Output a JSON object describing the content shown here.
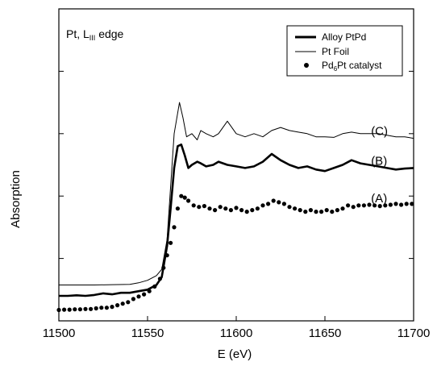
{
  "chart_data": {
    "type": "line",
    "panel_label": "Pt, L",
    "panel_label_sub": "III",
    "panel_label_suffix": " edge",
    "xlabel": "E (eV)",
    "ylabel": "Absorption",
    "xlim": [
      11500,
      11700
    ],
    "ylim": [
      0,
      10
    ],
    "x_ticks": [
      11500,
      11550,
      11600,
      11650,
      11700
    ],
    "y_ticks_drawn": true,
    "y_tick_labels_shown": false,
    "grid": false,
    "legend_position": "top-right",
    "legend": [
      {
        "key": "alloy",
        "label": "Alloy PtPd",
        "style": "thick-line"
      },
      {
        "key": "foil",
        "label": "Pt Foil",
        "style": "thin-line"
      },
      {
        "key": "catalyst",
        "label_main": "Pd",
        "label_sub": "6",
        "label_rest": "Pt catalyst",
        "style": "dots"
      }
    ],
    "annotations": [
      {
        "text": "(C)",
        "x": 11676,
        "y": 5.95
      },
      {
        "text": "(B)",
        "x": 11676,
        "y": 5.0
      },
      {
        "text": "(A)",
        "x": 11676,
        "y": 3.8
      }
    ],
    "series": [
      {
        "key": "foil",
        "name": "Pt Foil",
        "style": "thin-line",
        "x": [
          11500,
          11510,
          11520,
          11530,
          11540,
          11545,
          11550,
          11555,
          11558,
          11561,
          11563,
          11565,
          11568,
          11570,
          11572,
          11575,
          11578,
          11580,
          11583,
          11587,
          11590,
          11595,
          11600,
          11605,
          11610,
          11615,
          11620,
          11625,
          11630,
          11635,
          11640,
          11645,
          11650,
          11655,
          11660,
          11665,
          11670,
          11675,
          11680,
          11685,
          11690,
          11695,
          11700
        ],
        "y": [
          1.15,
          1.15,
          1.15,
          1.16,
          1.17,
          1.22,
          1.3,
          1.45,
          1.65,
          2.6,
          4.3,
          6.0,
          7.0,
          6.5,
          5.9,
          6.0,
          5.8,
          6.1,
          6.0,
          5.9,
          6.0,
          6.4,
          6.0,
          5.9,
          6.0,
          5.9,
          6.1,
          6.2,
          6.1,
          6.05,
          6.0,
          5.9,
          5.9,
          5.88,
          6.0,
          6.05,
          6.0,
          6.0,
          6.0,
          5.95,
          5.9,
          5.9,
          5.85
        ]
      },
      {
        "key": "alloy",
        "name": "Alloy PtPd",
        "style": "thick-line",
        "x": [
          11500,
          11505,
          11510,
          11515,
          11520,
          11525,
          11530,
          11535,
          11540,
          11545,
          11550,
          11555,
          11558,
          11561,
          11563,
          11565,
          11567,
          11569,
          11571,
          11573,
          11575,
          11578,
          11580,
          11583,
          11587,
          11590,
          11595,
          11600,
          11605,
          11610,
          11615,
          11620,
          11625,
          11630,
          11635,
          11640,
          11645,
          11650,
          11655,
          11660,
          11665,
          11670,
          11675,
          11680,
          11685,
          11690,
          11695,
          11700
        ],
        "y": [
          0.8,
          0.8,
          0.82,
          0.8,
          0.83,
          0.88,
          0.85,
          0.9,
          0.9,
          0.95,
          1.0,
          1.15,
          1.4,
          2.4,
          3.6,
          4.9,
          5.6,
          5.65,
          5.3,
          4.9,
          5.0,
          5.1,
          5.05,
          4.95,
          5.0,
          5.1,
          5.0,
          4.95,
          4.9,
          4.95,
          5.1,
          5.35,
          5.15,
          5.0,
          4.9,
          4.95,
          4.85,
          4.8,
          4.9,
          5.0,
          5.15,
          5.05,
          5.0,
          4.95,
          4.9,
          4.85,
          4.88,
          4.9
        ]
      },
      {
        "key": "catalyst",
        "name": "Pd6Pt catalyst",
        "style": "dots",
        "x": [
          11500,
          11503,
          11506,
          11509,
          11512,
          11515,
          11518,
          11521,
          11524,
          11527,
          11530,
          11533,
          11536,
          11539,
          11542,
          11545,
          11548,
          11551,
          11554,
          11557,
          11559,
          11561,
          11563,
          11565,
          11567,
          11569,
          11571,
          11573,
          11576,
          11579,
          11582,
          11585,
          11588,
          11591,
          11594,
          11597,
          11600,
          11603,
          11606,
          11609,
          11612,
          11615,
          11618,
          11621,
          11624,
          11627,
          11630,
          11633,
          11636,
          11639,
          11642,
          11645,
          11648,
          11651,
          11654,
          11657,
          11660,
          11663,
          11666,
          11669,
          11672,
          11675,
          11678,
          11681,
          11684,
          11687,
          11690,
          11693,
          11696,
          11699
        ],
        "y": [
          0.35,
          0.36,
          0.36,
          0.37,
          0.37,
          0.38,
          0.38,
          0.4,
          0.42,
          0.42,
          0.45,
          0.5,
          0.55,
          0.6,
          0.7,
          0.78,
          0.85,
          0.95,
          1.1,
          1.35,
          1.7,
          2.1,
          2.5,
          3.0,
          3.6,
          4.0,
          3.95,
          3.85,
          3.7,
          3.65,
          3.68,
          3.6,
          3.55,
          3.65,
          3.6,
          3.55,
          3.62,
          3.55,
          3.5,
          3.55,
          3.6,
          3.7,
          3.75,
          3.85,
          3.8,
          3.75,
          3.65,
          3.6,
          3.55,
          3.5,
          3.55,
          3.5,
          3.5,
          3.55,
          3.5,
          3.55,
          3.6,
          3.7,
          3.65,
          3.7,
          3.7,
          3.72,
          3.7,
          3.68,
          3.7,
          3.72,
          3.75,
          3.72,
          3.75,
          3.75
        ]
      }
    ]
  }
}
